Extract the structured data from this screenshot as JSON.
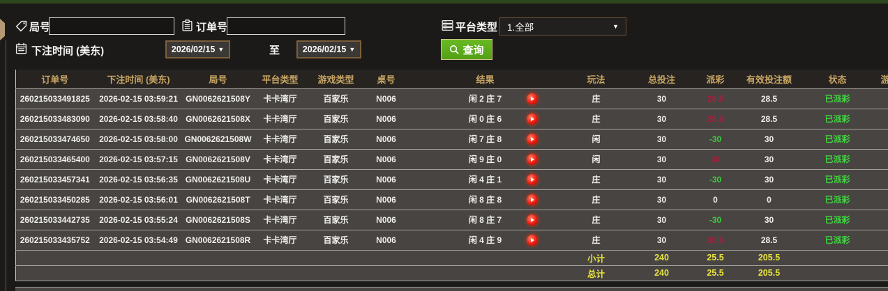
{
  "filters": {
    "round": {
      "label": "局号",
      "value": ""
    },
    "order": {
      "label": "订单号",
      "value": ""
    },
    "platform": {
      "label": "平台类型",
      "selected": "1.全部",
      "arrow": "▼"
    },
    "bet_time": {
      "label": "下注时间 (美东)",
      "from": "2026/02/15",
      "to_separator": "至",
      "to": "2026/02/15",
      "arrow": "▼"
    },
    "search_button": {
      "label": "查询"
    }
  },
  "table": {
    "columns": [
      "订单号",
      "下注时间 (美东)",
      "局号",
      "平台类型",
      "游戏类型",
      "桌号",
      "结果",
      "玩法",
      "总投注",
      "派彩",
      "有效投注额",
      "状态",
      "游"
    ],
    "rows": [
      {
        "order_id": "260215033491825",
        "bet_time": "2026-02-15 03:59:21",
        "round_id": "GN0062621508Y",
        "platform": "卡卡湾厅",
        "game_type": "百家乐",
        "table_no": "N006",
        "result": "闲 2 庄 7",
        "play": "庄",
        "total_bet": "30",
        "payout": "28.5",
        "payout_color": "win",
        "valid_bet": "28.5",
        "status": "已派彩"
      },
      {
        "order_id": "260215033483090",
        "bet_time": "2026-02-15 03:58:40",
        "round_id": "GN0062621508X",
        "platform": "卡卡湾厅",
        "game_type": "百家乐",
        "table_no": "N006",
        "result": "闲 0 庄 6",
        "play": "庄",
        "total_bet": "30",
        "payout": "28.5",
        "payout_color": "win",
        "valid_bet": "28.5",
        "status": "已派彩"
      },
      {
        "order_id": "260215033474650",
        "bet_time": "2026-02-15 03:58:00",
        "round_id": "GN0062621508W",
        "platform": "卡卡湾厅",
        "game_type": "百家乐",
        "table_no": "N006",
        "result": "闲 7 庄 8",
        "play": "闲",
        "total_bet": "30",
        "payout": "-30",
        "payout_color": "loss",
        "valid_bet": "30",
        "status": "已派彩"
      },
      {
        "order_id": "260215033465400",
        "bet_time": "2026-02-15 03:57:15",
        "round_id": "GN0062621508V",
        "platform": "卡卡湾厅",
        "game_type": "百家乐",
        "table_no": "N006",
        "result": "闲 9 庄 0",
        "play": "闲",
        "total_bet": "30",
        "payout": "30",
        "payout_color": "win",
        "valid_bet": "30",
        "status": "已派彩"
      },
      {
        "order_id": "260215033457341",
        "bet_time": "2026-02-15 03:56:35",
        "round_id": "GN0062621508U",
        "platform": "卡卡湾厅",
        "game_type": "百家乐",
        "table_no": "N006",
        "result": "闲 4 庄 1",
        "play": "庄",
        "total_bet": "30",
        "payout": "-30",
        "payout_color": "loss",
        "valid_bet": "30",
        "status": "已派彩"
      },
      {
        "order_id": "260215033450285",
        "bet_time": "2026-02-15 03:56:01",
        "round_id": "GN0062621508T",
        "platform": "卡卡湾厅",
        "game_type": "百家乐",
        "table_no": "N006",
        "result": "闲 8 庄 8",
        "play": "庄",
        "total_bet": "30",
        "payout": "0",
        "payout_color": "zero",
        "valid_bet": "0",
        "status": "已派彩"
      },
      {
        "order_id": "260215033442735",
        "bet_time": "2026-02-15 03:55:24",
        "round_id": "GN0062621508S",
        "platform": "卡卡湾厅",
        "game_type": "百家乐",
        "table_no": "N006",
        "result": "闲 8 庄 7",
        "play": "庄",
        "total_bet": "30",
        "payout": "-30",
        "payout_color": "loss",
        "valid_bet": "30",
        "status": "已派彩"
      },
      {
        "order_id": "260215033435752",
        "bet_time": "2026-02-15 03:54:49",
        "round_id": "GN0062621508R",
        "platform": "卡卡湾厅",
        "game_type": "百家乐",
        "table_no": "N006",
        "result": "闲 4 庄 9",
        "play": "庄",
        "total_bet": "30",
        "payout": "28.5",
        "payout_color": "win",
        "valid_bet": "28.5",
        "status": "已派彩"
      }
    ],
    "subtotal": {
      "label": "小计",
      "total_bet": "240",
      "payout": "25.5",
      "valid_bet": "205.5"
    },
    "grand_total": {
      "label": "总计",
      "total_bet": "240",
      "payout": "25.5",
      "valid_bet": "205.5"
    }
  },
  "colors": {
    "accent_gold": "#c8a563",
    "win_red": "#a3203d",
    "loss_green": "#3dcc3d",
    "status_green": "#3fd63f",
    "summary_yellow": "#e8e53e",
    "button_green": "#5fae1d",
    "row_gray": "#484442",
    "top_strip_green": "#2b471b"
  }
}
